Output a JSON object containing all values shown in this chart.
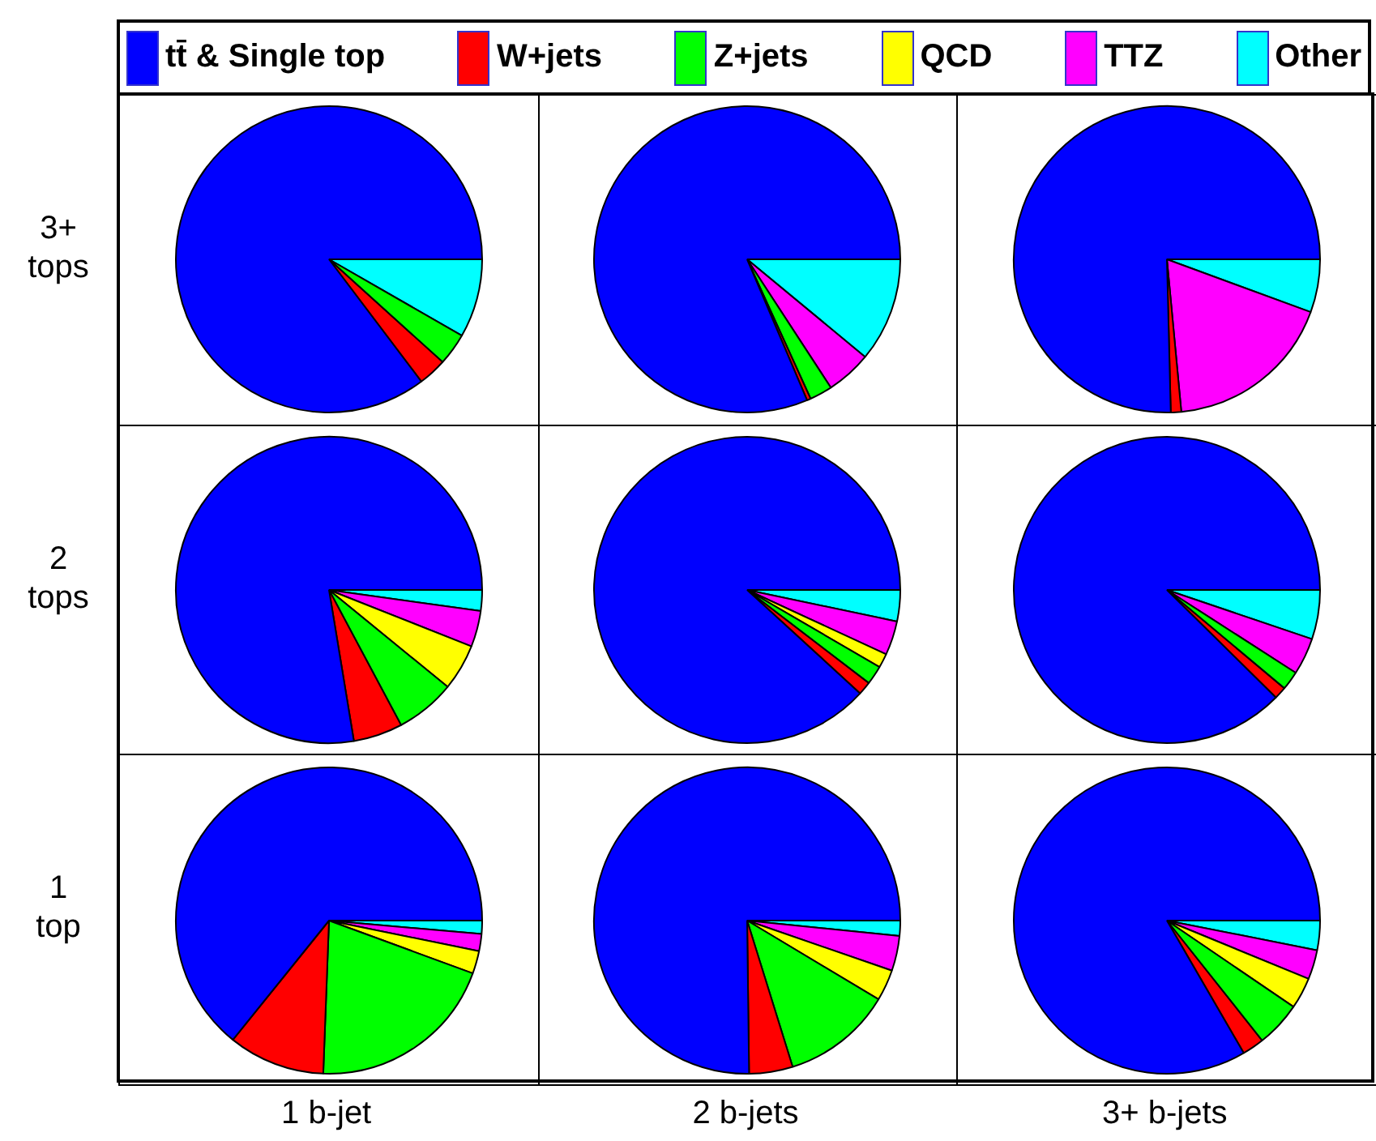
{
  "chart_data": [
    {
      "type": "pie",
      "ylabel": "3+ tops",
      "legend": "top",
      "categories": [
        "tt̄ & Single top",
        "W+jets",
        "Z+jets",
        "QCD",
        "TTZ",
        "Other"
      ],
      "colors": [
        "#0000ff",
        "#ff0000",
        "#00ff00",
        "#ffff00",
        "#ff00ff",
        "#00ffff"
      ],
      "values": [
        85.3,
        3.0,
        3.4,
        0,
        0,
        8.3
      ]
    },
    {
      "type": "pie",
      "categories": [
        null,
        null,
        null,
        null,
        null,
        null
      ],
      "colors": [
        "#0000ff",
        "#ff0000",
        "#00ff00",
        "#ffff00",
        "#ff00ff",
        "#00ffff"
      ],
      "values": [
        81.4,
        0.4,
        2.4,
        0,
        4.8,
        11.0
      ]
    },
    {
      "type": "pie",
      "categories": [
        null,
        null,
        null,
        null,
        null,
        null
      ],
      "colors": [
        "#0000ff",
        "#ff0000",
        "#00ff00",
        "#ffff00",
        "#ff00ff",
        "#00ffff"
      ],
      "values": [
        75.4,
        1.1,
        0,
        0,
        17.9,
        5.6
      ]
    },
    {
      "type": "pie",
      "ylabel": "2 tops",
      "categories": [
        null,
        null,
        null,
        null,
        null,
        null
      ],
      "colors": [
        "#0000ff",
        "#ff0000",
        "#00ff00",
        "#ffff00",
        "#ff00ff",
        "#00ffff"
      ],
      "values": [
        77.6,
        5.2,
        6.3,
        4.9,
        3.8,
        2.2
      ]
    },
    {
      "type": "pie",
      "categories": [
        null,
        null,
        null,
        null,
        null,
        null
      ],
      "colors": [
        "#0000ff",
        "#ff0000",
        "#00ff00",
        "#ffff00",
        "#ff00ff",
        "#00ffff"
      ],
      "values": [
        88.2,
        1.4,
        2.0,
        1.5,
        3.6,
        3.3
      ]
    },
    {
      "type": "pie",
      "categories": [
        null,
        null,
        null,
        null,
        null,
        null
      ],
      "colors": [
        "#0000ff",
        "#ff0000",
        "#00ff00",
        "#ffff00",
        "#ff00ff",
        "#00ffff"
      ],
      "values": [
        87.6,
        1.3,
        2.0,
        0,
        3.9,
        5.2
      ]
    },
    {
      "type": "pie",
      "ylabel": "1 top",
      "xlabel": "1 b-jet",
      "categories": [
        null,
        null,
        null,
        null,
        null,
        null
      ],
      "colors": [
        "#0000ff",
        "#ff0000",
        "#00ff00",
        "#ffff00",
        "#ff00ff",
        "#00ffff"
      ],
      "values": [
        64.2,
        10.2,
        20.0,
        2.4,
        1.8,
        1.4
      ]
    },
    {
      "type": "pie",
      "xlabel": "2 b-jets",
      "categories": [
        null,
        null,
        null,
        null,
        null,
        null
      ],
      "colors": [
        "#0000ff",
        "#ff0000",
        "#00ff00",
        "#ffff00",
        "#ff00ff",
        "#00ffff"
      ],
      "values": [
        75.2,
        4.6,
        11.6,
        3.3,
        3.7,
        1.6
      ]
    },
    {
      "type": "pie",
      "xlabel": "3+ b-jets",
      "categories": [
        null,
        null,
        null,
        null,
        null,
        null
      ],
      "colors": [
        "#0000ff",
        "#ff0000",
        "#00ff00",
        "#ffff00",
        "#ff00ff",
        "#00ffff"
      ],
      "values": [
        83.2,
        2.3,
        4.8,
        3.3,
        3.1,
        3.1
      ]
    }
  ]
}
